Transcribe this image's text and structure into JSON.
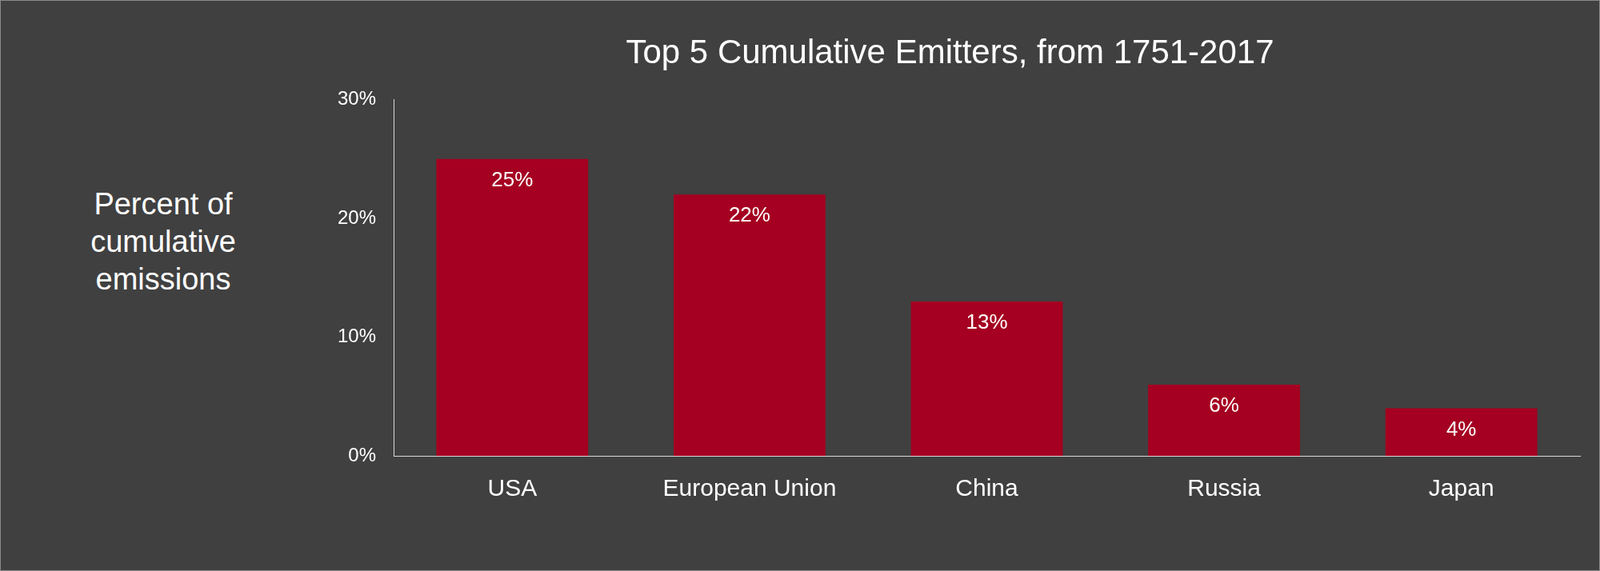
{
  "chart_data": {
    "type": "bar",
    "title": "Top 5 Cumulative Emitters, from 1751-2017",
    "ylabel": "Percent of cumulative emissions",
    "categories": [
      "USA",
      "European Union",
      "China",
      "Russia",
      "Japan"
    ],
    "values": [
      25,
      22,
      13,
      6,
      4
    ],
    "value_labels": [
      "25%",
      "22%",
      "13%",
      "6%",
      "4%"
    ],
    "color": "#a50021",
    "ylim": [
      0,
      30
    ],
    "yticks": [
      {
        "value": 0,
        "label": "0%"
      },
      {
        "value": 10,
        "label": "10%"
      },
      {
        "value": 20,
        "label": "20%"
      },
      {
        "value": 30,
        "label": "30%"
      }
    ],
    "grid": false,
    "data_labels": true
  }
}
